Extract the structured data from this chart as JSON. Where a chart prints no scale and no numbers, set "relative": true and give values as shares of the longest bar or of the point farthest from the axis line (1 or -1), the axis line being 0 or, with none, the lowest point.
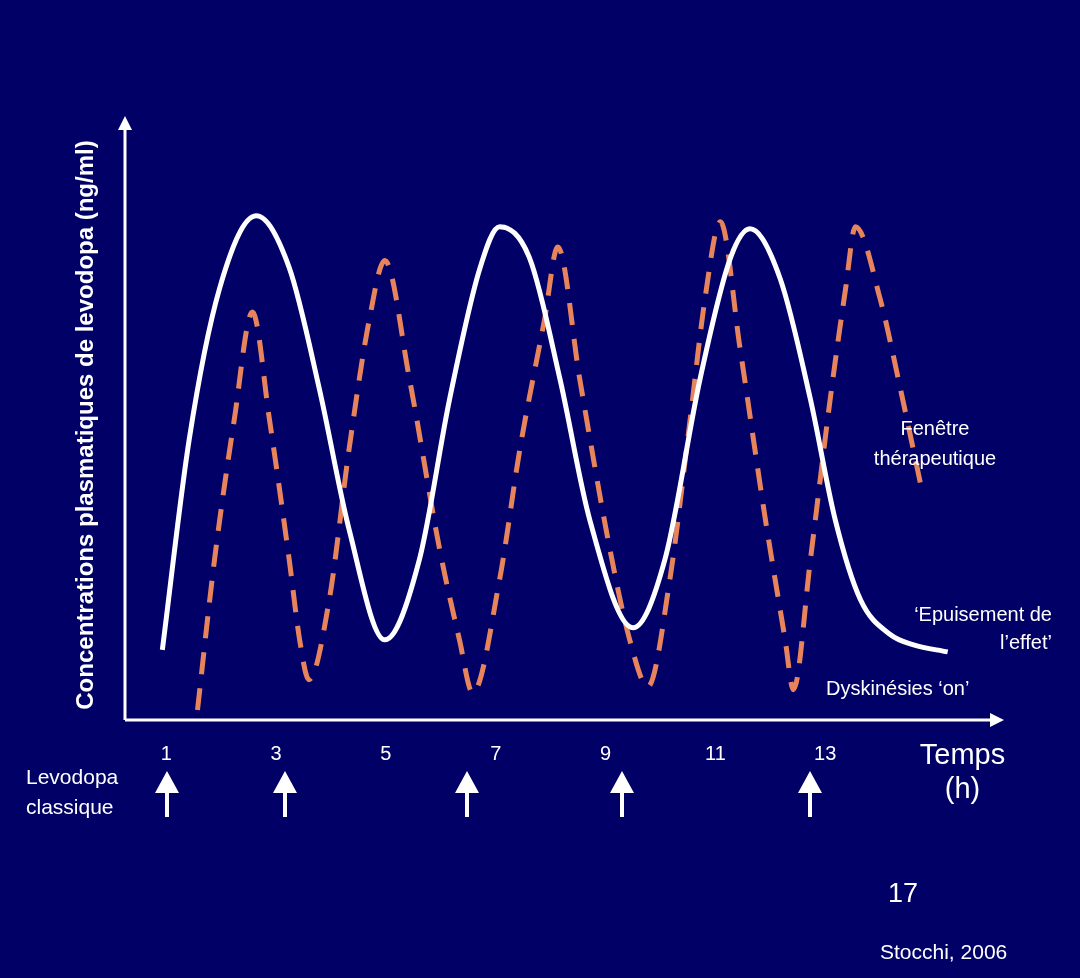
{
  "chart_data": {
    "type": "line",
    "relative": true,
    "ylabel": "Concentrations plasmatiques de levodopa (ng/ml)",
    "xlabel": "Temps (h)",
    "xlim": [
      0.25,
      16
    ],
    "xticks": [
      1,
      3,
      5,
      7,
      9,
      11,
      13
    ],
    "grid": false,
    "legend": false,
    "marker": "none",
    "series": [
      {
        "color": "#ffffff",
        "line_style": "solid",
        "x": [
          0.93,
          1.42,
          1.97,
          2.64,
          3.24,
          3.79,
          4.33,
          4.98,
          5.61,
          6.16,
          6.71,
          7.07,
          7.62,
          8.17,
          8.71,
          9.5,
          10.08,
          10.72,
          11.27,
          11.63,
          12.18,
          12.73,
          13.18,
          13.64,
          14.19,
          14.61,
          15.23
        ],
        "values": [
          0.139,
          0.557,
          0.855,
          1.0,
          0.897,
          0.656,
          0.378,
          0.159,
          0.318,
          0.636,
          0.895,
          0.978,
          0.915,
          0.676,
          0.398,
          0.183,
          0.318,
          0.676,
          0.915,
          0.974,
          0.875,
          0.636,
          0.398,
          0.239,
          0.169,
          0.149,
          0.135
        ]
      },
      {
        "color": "#e8845c",
        "line_style": "dashed",
        "x": [
          1.57,
          1.88,
          2.24,
          2.57,
          2.88,
          3.24,
          3.43,
          3.6,
          3.97,
          4.33,
          4.7,
          4.98,
          5.43,
          5.98,
          6.34,
          6.58,
          7.07,
          7.44,
          7.89,
          8.13,
          8.53,
          9.08,
          9.44,
          9.77,
          10.17,
          10.54,
          10.81,
          11.09,
          11.45,
          11.91,
          12.27,
          12.42,
          12.73,
          13.09,
          13.37,
          13.55,
          14.0,
          14.37,
          14.73
        ],
        "values": [
          0.02,
          0.318,
          0.596,
          0.809,
          0.596,
          0.318,
          0.159,
          0.08,
          0.239,
          0.537,
          0.795,
          0.911,
          0.676,
          0.338,
          0.159,
          0.054,
          0.278,
          0.537,
          0.795,
          0.938,
          0.676,
          0.338,
          0.159,
          0.066,
          0.278,
          0.596,
          0.835,
          0.988,
          0.736,
          0.398,
          0.159,
          0.06,
          0.318,
          0.636,
          0.855,
          0.978,
          0.835,
          0.656,
          0.471
        ]
      }
    ],
    "annotations": [
      "Fenêtre thérapeutique",
      "‘Epuisement de l’effet’",
      "Dyskinésies ‘on’",
      "Levodopa classique",
      "17",
      "Stocchi, 2006"
    ]
  }
}
